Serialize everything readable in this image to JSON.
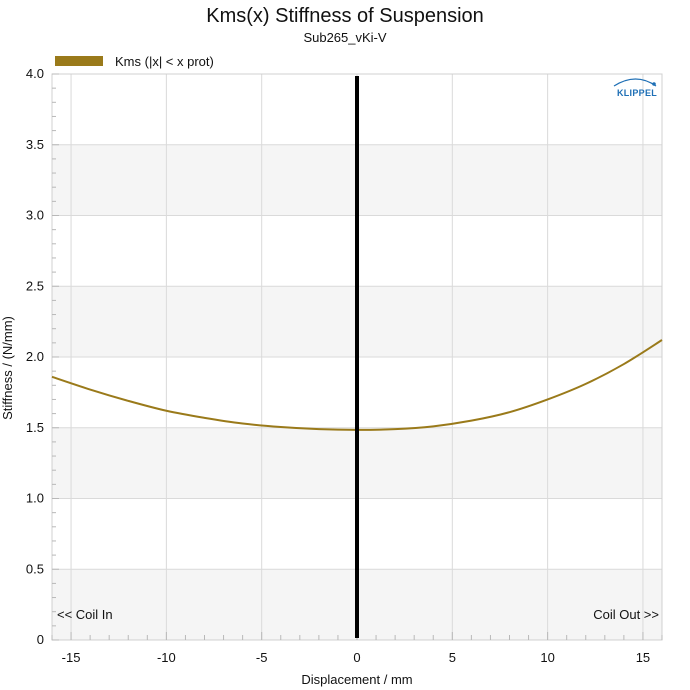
{
  "chart_data": {
    "type": "line",
    "title": "Kms(x) Stiffness of Suspension",
    "subtitle": "Sub265_vKi-V",
    "xlabel": "Displacement / mm",
    "ylabel": "Stiffness / (N/mm)",
    "xlim": [
      -16,
      16
    ],
    "ylim": [
      0,
      4.0
    ],
    "xticks": [
      -15,
      -10,
      -5,
      0,
      5,
      10,
      15
    ],
    "xtick_labels": [
      "-15",
      "-10",
      "-5",
      "0",
      "5",
      "10",
      "15"
    ],
    "yticks": [
      0,
      0.5,
      1.0,
      1.5,
      2.0,
      2.5,
      3.0,
      3.5,
      4.0
    ],
    "ytick_labels": [
      "0",
      "0.5",
      "1.0",
      "1.5",
      "2.0",
      "2.5",
      "3.0",
      "3.5",
      "4.0"
    ],
    "grid": true,
    "legend_position": "top-left",
    "series": [
      {
        "name": "Kms (|x| < x prot)",
        "color": "#9a7a1a",
        "x": [
          -16,
          -14,
          -12,
          -10,
          -8,
          -6,
          -4,
          -2,
          0,
          2,
          4,
          6,
          8,
          10,
          12,
          14,
          16
        ],
        "y": [
          1.86,
          1.77,
          1.69,
          1.62,
          1.57,
          1.53,
          1.505,
          1.49,
          1.485,
          1.49,
          1.51,
          1.55,
          1.61,
          1.7,
          1.81,
          1.95,
          2.12
        ]
      }
    ],
    "vertical_marker": {
      "x": 0,
      "color": "#000000"
    },
    "annotations": {
      "left": "<< Coil In",
      "right": "Coil Out >>"
    },
    "logo": "KLIPPEL"
  }
}
